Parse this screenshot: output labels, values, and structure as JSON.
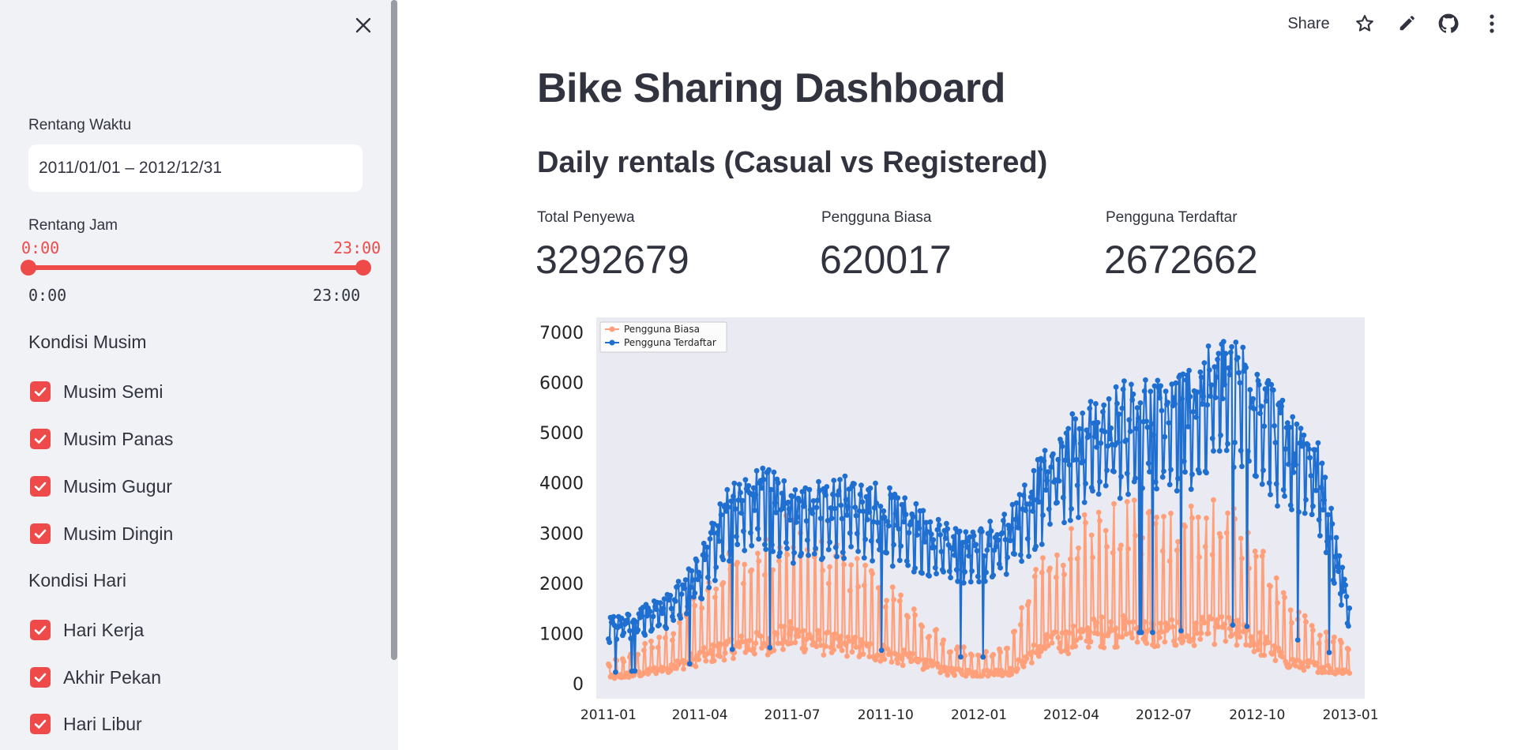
{
  "toolbar": {
    "share_label": "Share"
  },
  "sidebar": {
    "date_range": {
      "label": "Rentang Waktu",
      "value": "2011/01/01 – 2012/12/31"
    },
    "hour_range": {
      "label": "Rentang Jam",
      "min_value": "0:00",
      "max_value": "23:00",
      "min_tick": "0:00",
      "max_tick": "23:00",
      "selected_fraction": [
        0,
        1
      ]
    },
    "season": {
      "label": "Kondisi Musim",
      "options": [
        {
          "label": "Musim Semi",
          "checked": true
        },
        {
          "label": "Musim Panas",
          "checked": true
        },
        {
          "label": "Musim Gugur",
          "checked": true
        },
        {
          "label": "Musim Dingin",
          "checked": true
        }
      ]
    },
    "day": {
      "label": "Kondisi Hari",
      "options": [
        {
          "label": "Hari Kerja",
          "checked": true
        },
        {
          "label": "Akhir Pekan",
          "checked": true
        },
        {
          "label": "Hari Libur",
          "checked": true
        }
      ]
    }
  },
  "main": {
    "title": "Bike Sharing Dashboard",
    "subtitle": "Daily rentals (Casual vs Registered)",
    "metrics": [
      {
        "label": "Total Penyewa",
        "value": "3292679"
      },
      {
        "label": "Pengguna Biasa",
        "value": "620017"
      },
      {
        "label": "Pengguna Terdaftar",
        "value": "2672662"
      }
    ]
  },
  "colors": {
    "accent": "#ef4a4a",
    "casual": "#ffa07a",
    "registered": "#1f6fd1",
    "plot_bg": "#eaeaf2"
  },
  "chart_data": {
    "type": "line",
    "x_ticks": [
      "2011-01",
      "2011-04",
      "2011-07",
      "2011-10",
      "2012-01",
      "2012-04",
      "2012-07",
      "2012-10",
      "2013-01"
    ],
    "y_ticks": [
      "0",
      "1000",
      "2000",
      "3000",
      "4000",
      "5000",
      "6000",
      "7000"
    ],
    "ylim": [
      -300,
      7300
    ],
    "xlim": [
      "2010-12-20",
      "2013-01-15"
    ],
    "legend_position": "top-left",
    "series": [
      {
        "name": "Pengguna Biasa",
        "color": "#ffa07a",
        "monthly_profile": [
          {
            "x": "2011-01-01",
            "y": 150
          },
          {
            "x": "2011-02-01",
            "y": 250
          },
          {
            "x": "2011-03-01",
            "y": 400
          },
          {
            "x": "2011-04-01",
            "y": 650
          },
          {
            "x": "2011-05-01",
            "y": 900
          },
          {
            "x": "2011-06-01",
            "y": 1000
          },
          {
            "x": "2011-07-01",
            "y": 1200
          },
          {
            "x": "2011-08-01",
            "y": 1000
          },
          {
            "x": "2011-09-01",
            "y": 900
          },
          {
            "x": "2011-10-01",
            "y": 750
          },
          {
            "x": "2011-11-01",
            "y": 550
          },
          {
            "x": "2011-12-01",
            "y": 300
          },
          {
            "x": "2012-01-01",
            "y": 250
          },
          {
            "x": "2012-02-01",
            "y": 300
          },
          {
            "x": "2012-03-01",
            "y": 900
          },
          {
            "x": "2012-04-01",
            "y": 1100
          },
          {
            "x": "2012-05-01",
            "y": 1300
          },
          {
            "x": "2012-06-01",
            "y": 1300
          },
          {
            "x": "2012-07-01",
            "y": 1200
          },
          {
            "x": "2012-08-01",
            "y": 1250
          },
          {
            "x": "2012-09-01",
            "y": 1300
          },
          {
            "x": "2012-10-01",
            "y": 1050
          },
          {
            "x": "2012-11-01",
            "y": 550
          },
          {
            "x": "2012-12-01",
            "y": 400
          },
          {
            "x": "2012-12-31",
            "y": 300
          }
        ]
      },
      {
        "name": "Pengguna Terdaftar",
        "color": "#1f6fd1",
        "monthly_profile": [
          {
            "x": "2011-01-01",
            "y": 1100
          },
          {
            "x": "2011-02-01",
            "y": 1300
          },
          {
            "x": "2011-03-01",
            "y": 1500
          },
          {
            "x": "2011-04-01",
            "y": 2200
          },
          {
            "x": "2011-05-01",
            "y": 3400
          },
          {
            "x": "2011-06-01",
            "y": 3700
          },
          {
            "x": "2011-07-01",
            "y": 3300
          },
          {
            "x": "2011-08-01",
            "y": 3400
          },
          {
            "x": "2011-09-01",
            "y": 3500
          },
          {
            "x": "2011-10-01",
            "y": 3300
          },
          {
            "x": "2011-11-01",
            "y": 3000
          },
          {
            "x": "2011-12-01",
            "y": 2700
          },
          {
            "x": "2012-01-01",
            "y": 2600
          },
          {
            "x": "2012-02-01",
            "y": 3000
          },
          {
            "x": "2012-03-01",
            "y": 3800
          },
          {
            "x": "2012-04-01",
            "y": 4500
          },
          {
            "x": "2012-05-01",
            "y": 4900
          },
          {
            "x": "2012-06-01",
            "y": 5100
          },
          {
            "x": "2012-07-01",
            "y": 5100
          },
          {
            "x": "2012-08-01",
            "y": 5400
          },
          {
            "x": "2012-09-01",
            "y": 5900
          },
          {
            "x": "2012-10-01",
            "y": 5600
          },
          {
            "x": "2012-11-01",
            "y": 4500
          },
          {
            "x": "2012-12-01",
            "y": 4000
          },
          {
            "x": "2012-12-31",
            "y": 1300
          }
        ]
      }
    ]
  }
}
